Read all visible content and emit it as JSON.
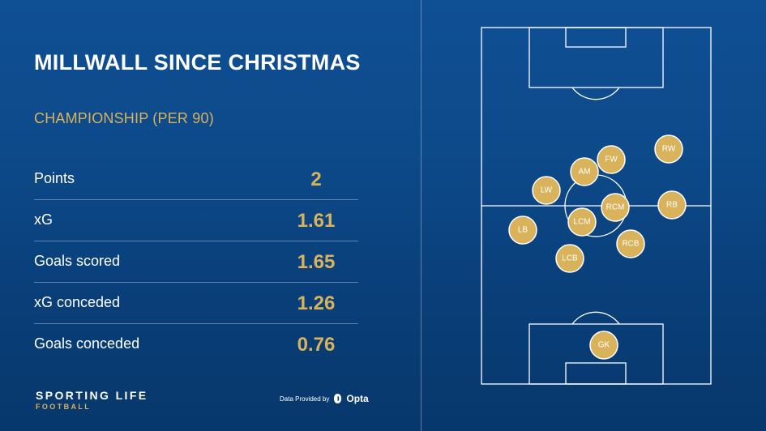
{
  "header": {
    "title": "MILLWALL SINCE CHRISTMAS",
    "subtitle": "CHAMPIONSHIP (PER 90)"
  },
  "stats": [
    {
      "label": "Points",
      "value": "2"
    },
    {
      "label": "xG",
      "value": "1.61"
    },
    {
      "label": "Goals scored",
      "value": "1.65"
    },
    {
      "label": "xG conceded",
      "value": "1.26"
    },
    {
      "label": "Goals conceded",
      "value": "0.76"
    }
  ],
  "branding": {
    "line1": "SPORTING LIFE",
    "line2": "FOOTBALL"
  },
  "credit": {
    "text": "Data Provided by",
    "provider": "Opta"
  },
  "players": [
    "RW",
    "FW",
    "AM",
    "LW",
    "RCM",
    "RB",
    "LCM",
    "LB",
    "RCB",
    "LCB",
    "GK"
  ],
  "colors": {
    "accent": "#d9b35c",
    "background": "#0d4a8a"
  }
}
